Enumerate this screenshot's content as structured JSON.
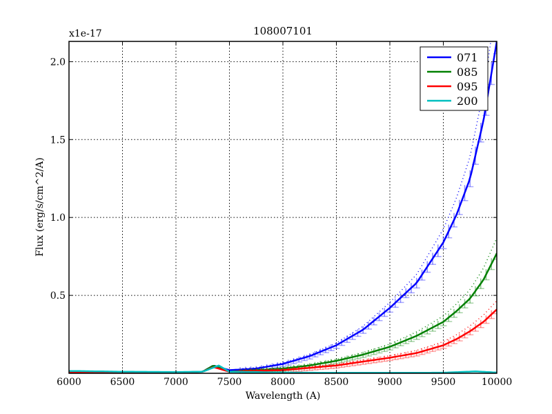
{
  "chart_data": {
    "type": "line",
    "title": "108007101",
    "xlabel": "Wavelength (A)",
    "ylabel": "Flux (erg/s/cm^2/A)",
    "y_offset_label": "x1e-17",
    "xlim": [
      6000,
      10000
    ],
    "ylim": [
      0,
      2.13
    ],
    "xticks": [
      6000,
      6500,
      7000,
      7500,
      8000,
      8500,
      9000,
      9500,
      10000
    ],
    "xtick_labels": [
      "6000",
      "6500",
      "7000",
      "7500",
      "8000",
      "8500",
      "9000",
      "9500",
      "10000"
    ],
    "yticks": [
      0.5,
      1.0,
      1.5,
      2.0
    ],
    "ytick_labels": [
      "0.5",
      "1.0",
      "1.5",
      "2.0"
    ],
    "grid": true,
    "legend_position": "upper right",
    "series": [
      {
        "name": "071",
        "color": "#0000ff",
        "x": [
          6000,
          6500,
          7000,
          7250,
          7350,
          7500,
          7750,
          8000,
          8250,
          8500,
          8750,
          9000,
          9250,
          9500,
          9625,
          9750,
          9875,
          10000
        ],
        "values": [
          0.01,
          0.005,
          0.005,
          0.01,
          0.05,
          0.02,
          0.03,
          0.06,
          0.11,
          0.18,
          0.28,
          0.42,
          0.58,
          0.84,
          1.02,
          1.25,
          1.62,
          2.13
        ]
      },
      {
        "name": "085",
        "color": "#008000",
        "x": [
          6000,
          6500,
          7000,
          7250,
          7350,
          7500,
          7750,
          8000,
          8250,
          8500,
          8750,
          9000,
          9250,
          9500,
          9625,
          9750,
          9875,
          10000
        ],
        "values": [
          0.005,
          0.005,
          0.005,
          0.01,
          0.05,
          0.01,
          0.02,
          0.03,
          0.05,
          0.08,
          0.12,
          0.17,
          0.24,
          0.33,
          0.4,
          0.48,
          0.6,
          0.77
        ]
      },
      {
        "name": "095",
        "color": "#ff0000",
        "x": [
          6000,
          6500,
          7000,
          7250,
          7350,
          7500,
          7750,
          8000,
          8250,
          8500,
          8750,
          9000,
          9250,
          9500,
          9625,
          9750,
          9875,
          10000
        ],
        "values": [
          0.005,
          0.005,
          0.005,
          0.01,
          0.04,
          0.01,
          0.015,
          0.02,
          0.035,
          0.05,
          0.075,
          0.1,
          0.13,
          0.18,
          0.22,
          0.27,
          0.33,
          0.41
        ]
      },
      {
        "name": "200",
        "color": "#00bfbf",
        "x": [
          6000,
          6500,
          7000,
          7250,
          7400,
          7500,
          8000,
          8500,
          9000,
          9500,
          9800,
          10000
        ],
        "values": [
          0.015,
          0.01,
          0.008,
          0.01,
          0.05,
          0.01,
          0.005,
          0.003,
          0.003,
          0.004,
          0.012,
          0.005
        ]
      }
    ]
  }
}
